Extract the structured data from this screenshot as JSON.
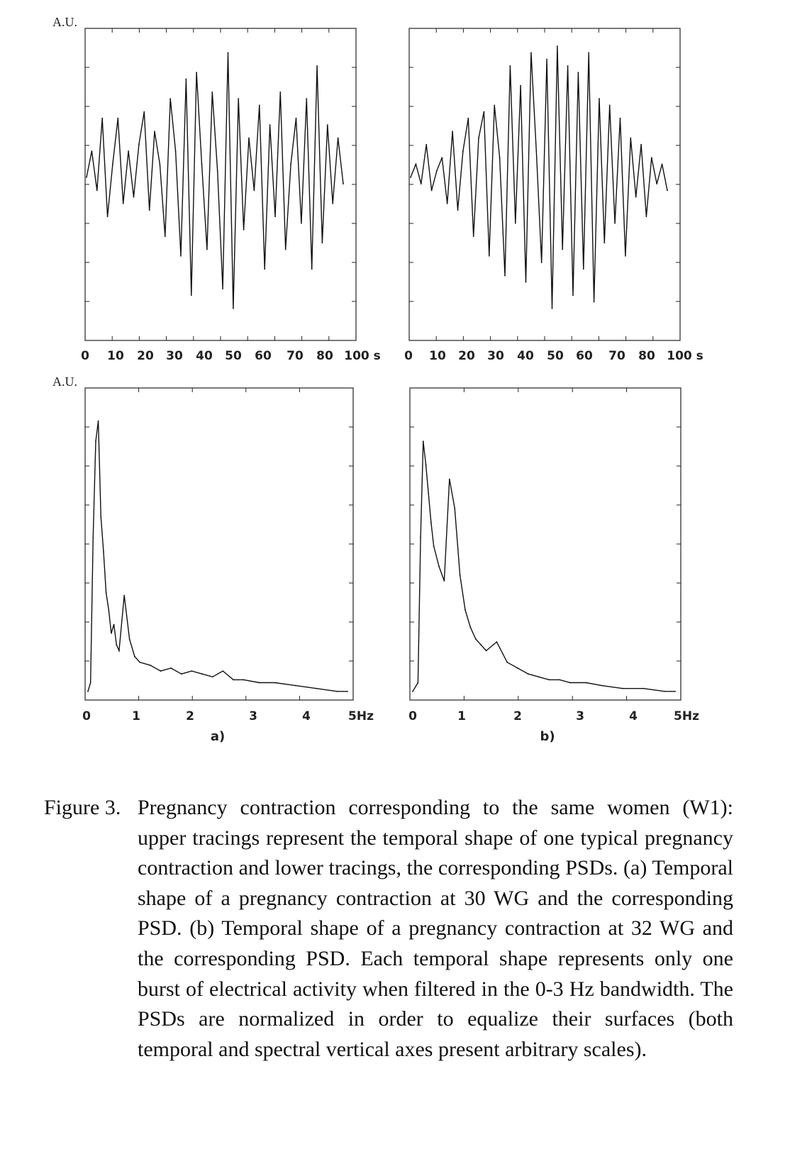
{
  "chart_data": [
    {
      "panel": "a",
      "type": "line",
      "ylabel": "A.U.",
      "xlabel": "",
      "x_ticks": [
        "0",
        "10",
        "20",
        "30",
        "40",
        "50",
        "60",
        "70",
        "80",
        "100 s"
      ],
      "x_unit": "s",
      "xlim": [
        0,
        100
      ],
      "grid": false,
      "description_series": "temporal shape of one pregnancy contraction at 30 WG (arbitrary units)",
      "series": [
        {
          "values": [
            0.0,
            0.2,
            -0.1,
            0.45,
            -0.3,
            0.1,
            0.45,
            -0.2,
            0.2,
            -0.15,
            0.25,
            0.5,
            -0.25,
            0.35,
            0.1,
            -0.45,
            0.6,
            0.2,
            -0.6,
            0.75,
            -0.9,
            0.8,
            0.1,
            -0.55,
            0.65,
            0.05,
            -0.85,
            0.95,
            -1.0,
            0.6,
            -0.4,
            0.3,
            -0.1,
            0.55,
            -0.7,
            0.4,
            -0.3,
            0.65,
            -0.55,
            0.1,
            0.45,
            -0.35,
            0.6,
            -0.7,
            0.85,
            -0.5,
            0.4,
            -0.2,
            0.3,
            -0.05
          ]
        }
      ]
    },
    {
      "panel": "b",
      "type": "line",
      "ylabel": "",
      "xlabel": "",
      "x_ticks": [
        "0",
        "10",
        "20",
        "30",
        "40",
        "50",
        "60",
        "70",
        "80",
        "100 s"
      ],
      "x_unit": "s",
      "xlim": [
        0,
        100
      ],
      "grid": false,
      "description_series": "temporal shape of one pregnancy contraction at 32 WG (arbitrary units)",
      "series": [
        {
          "values": [
            0.0,
            0.1,
            -0.05,
            0.25,
            -0.1,
            0.05,
            0.15,
            -0.2,
            0.35,
            -0.25,
            0.2,
            0.45,
            -0.45,
            0.3,
            0.5,
            -0.6,
            0.55,
            0.15,
            -0.75,
            0.85,
            -0.35,
            0.7,
            -0.8,
            0.95,
            0.2,
            -0.65,
            0.9,
            -1.0,
            1.0,
            -0.55,
            0.85,
            -0.9,
            0.8,
            -0.7,
            0.95,
            -0.95,
            0.6,
            -0.5,
            0.55,
            -0.35,
            0.45,
            -0.6,
            0.3,
            -0.15,
            0.25,
            -0.3,
            0.15,
            -0.05,
            0.1,
            -0.1
          ]
        }
      ]
    },
    {
      "panel": "a",
      "type": "line",
      "ylabel": "A.U.",
      "xlabel": "",
      "x_ticks": [
        "0",
        "1",
        "2",
        "3",
        "4",
        "5Hz"
      ],
      "x_unit": "Hz",
      "xlim": [
        0,
        5
      ],
      "grid": false,
      "panel_label": "a)",
      "description_series": "corresponding PSD at 30 WG (normalized)",
      "series": [
        {
          "x": [
            0.0,
            0.05,
            0.1,
            0.15,
            0.2,
            0.25,
            0.3,
            0.35,
            0.4,
            0.45,
            0.5,
            0.55,
            0.6,
            0.7,
            0.8,
            0.9,
            1.0,
            1.2,
            1.4,
            1.6,
            1.8,
            2.0,
            2.2,
            2.4,
            2.6,
            2.8,
            3.0,
            3.3,
            3.6,
            4.0,
            4.4,
            4.8,
            5.0
          ],
          "y": [
            0.02,
            0.05,
            0.55,
            0.88,
            0.95,
            0.62,
            0.5,
            0.36,
            0.3,
            0.22,
            0.25,
            0.18,
            0.16,
            0.35,
            0.2,
            0.14,
            0.12,
            0.11,
            0.09,
            0.1,
            0.08,
            0.09,
            0.08,
            0.07,
            0.09,
            0.06,
            0.06,
            0.05,
            0.05,
            0.04,
            0.03,
            0.02,
            0.02
          ]
        }
      ]
    },
    {
      "panel": "b",
      "type": "line",
      "ylabel": "",
      "xlabel": "",
      "x_ticks": [
        "0",
        "1",
        "2",
        "3",
        "4",
        "5Hz"
      ],
      "x_unit": "Hz",
      "xlim": [
        0,
        5
      ],
      "grid": false,
      "panel_label": "b)",
      "description_series": "corresponding PSD at 32 WG (normalized)",
      "series": [
        {
          "x": [
            0.0,
            0.1,
            0.15,
            0.2,
            0.25,
            0.3,
            0.35,
            0.4,
            0.5,
            0.6,
            0.7,
            0.8,
            0.9,
            1.0,
            1.1,
            1.2,
            1.3,
            1.4,
            1.6,
            1.8,
            2.0,
            2.2,
            2.4,
            2.6,
            2.8,
            3.0,
            3.3,
            3.6,
            4.0,
            4.4,
            4.8,
            5.0
          ],
          "y": [
            0.02,
            0.05,
            0.55,
            0.88,
            0.8,
            0.7,
            0.6,
            0.52,
            0.45,
            0.4,
            0.75,
            0.65,
            0.42,
            0.3,
            0.24,
            0.2,
            0.18,
            0.16,
            0.19,
            0.12,
            0.1,
            0.08,
            0.07,
            0.06,
            0.06,
            0.05,
            0.05,
            0.04,
            0.03,
            0.03,
            0.02,
            0.02
          ]
        }
      ]
    }
  ],
  "caption": {
    "label": "Figure 3.",
    "text": "Pregnancy contraction corresponding to the same women (W1): upper tracings represent the temporal shape of one typical pregnancy contraction and lower tracings, the corresponding PSDs. (a) Temporal shape of a pregnancy contraction at 30 WG and the corresponding PSD. (b) Temporal shape of a pregnancy contraction at 32 WG and the corresponding PSD. Each temporal shape represents only one burst of electrical activity when filtered in the 0-3 Hz bandwidth. The PSDs are normalized in order to equalize their surfaces (both temporal and spectral vertical axes present arbitrary scales)."
  }
}
